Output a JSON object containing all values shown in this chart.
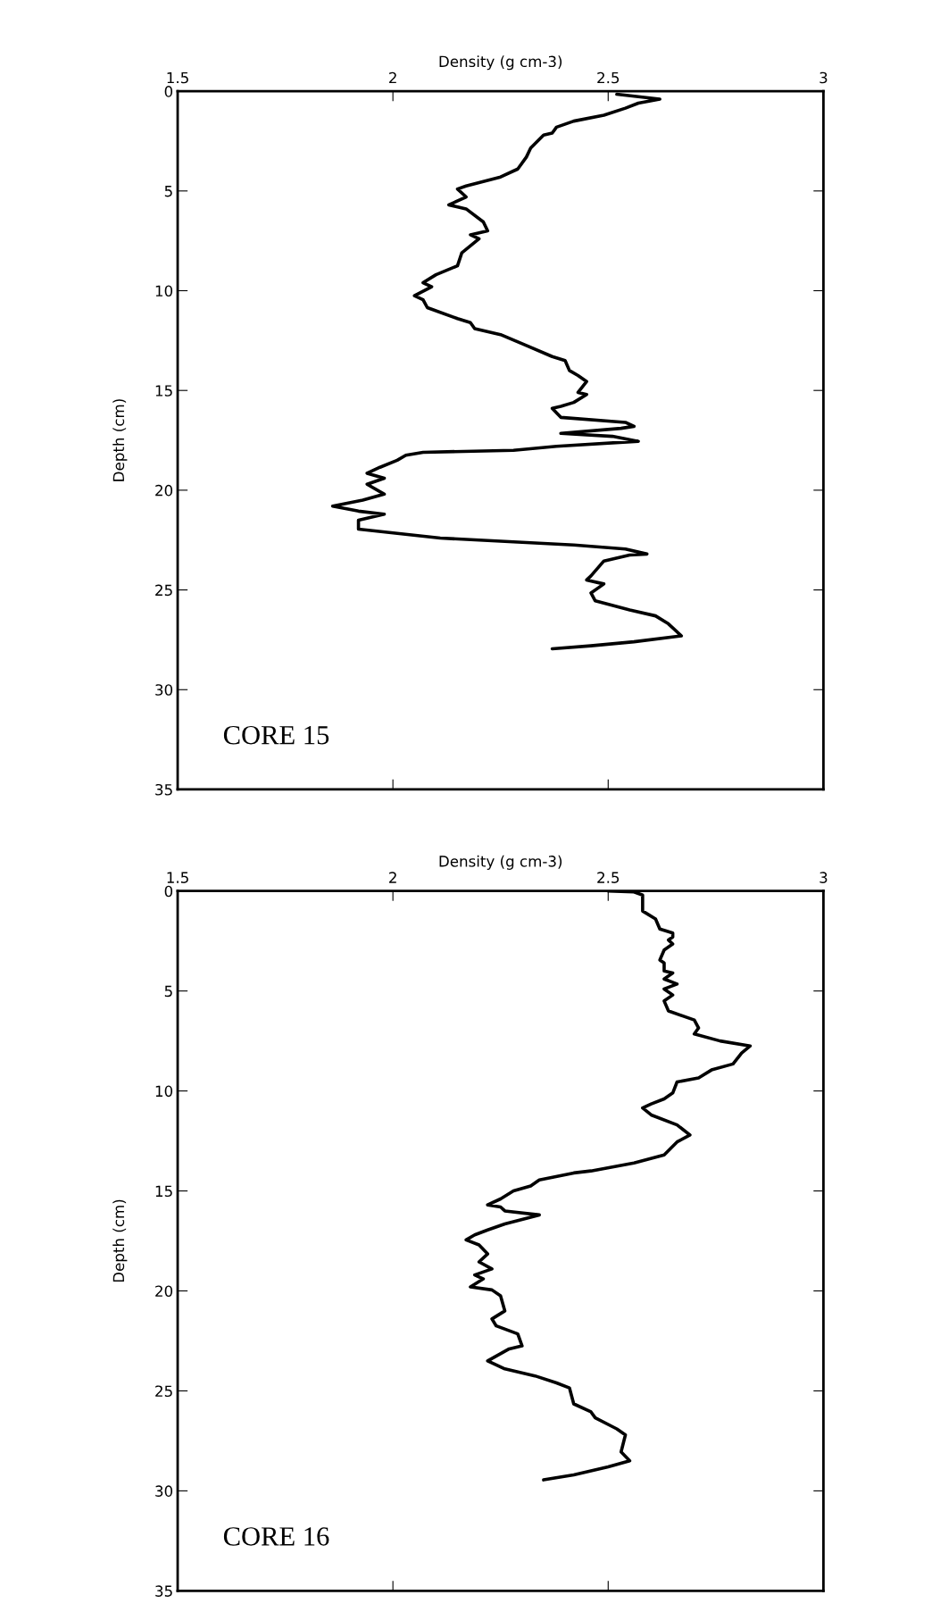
{
  "chart_data": [
    {
      "type": "line",
      "xlabel": "Density (g cm-3)",
      "ylabel": "Depth (cm)",
      "annotations": [
        "CORE 15"
      ],
      "xlim": [
        1.5,
        3
      ],
      "xticks": [
        1.5,
        2,
        2.5,
        3
      ],
      "ylim": [
        35,
        0
      ],
      "yticks": [
        0,
        5,
        10,
        15,
        20,
        25,
        30,
        35
      ],
      "grid": false,
      "line_style": "solid",
      "marker": "none",
      "series": [
        {
          "color": "#000000",
          "x": [
            2.52,
            2.62,
            2.57,
            2.54,
            2.49,
            2.42,
            2.38,
            2.37,
            2.35,
            2.32,
            2.31,
            2.29,
            2.25,
            2.17,
            2.15,
            2.17,
            2.13,
            2.17,
            2.21,
            2.22,
            2.18,
            2.2,
            2.16,
            2.15,
            2.1,
            2.07,
            2.09,
            2.05,
            2.07,
            2.08,
            2.15,
            2.18,
            2.19,
            2.25,
            2.31,
            2.37,
            2.4,
            2.41,
            2.43,
            2.45,
            2.43,
            2.45,
            2.42,
            2.39,
            2.37,
            2.39,
            2.54,
            2.56,
            2.53,
            2.39,
            2.51,
            2.57,
            2.38,
            2.28,
            2.07,
            2.03,
            2.01,
            1.97,
            1.94,
            1.98,
            1.94,
            1.98,
            1.93,
            1.86,
            1.92,
            1.98,
            1.92,
            1.92,
            2.11,
            2.29,
            2.42,
            2.54,
            2.59,
            2.55,
            2.49,
            2.46,
            2.45,
            2.49,
            2.46,
            2.47,
            2.55,
            2.61,
            2.64,
            2.67,
            2.56,
            2.46,
            2.37
          ],
          "values": [
            0.15,
            0.4,
            0.6,
            0.85,
            1.2,
            1.5,
            1.8,
            2.1,
            2.2,
            2.85,
            3.3,
            3.9,
            4.3,
            4.75,
            4.9,
            5.3,
            5.7,
            5.9,
            6.55,
            7.0,
            7.2,
            7.4,
            8.1,
            8.75,
            9.2,
            9.6,
            9.8,
            10.25,
            10.45,
            10.85,
            11.4,
            11.6,
            11.9,
            12.2,
            12.75,
            13.3,
            13.5,
            14.0,
            14.25,
            14.55,
            15.1,
            15.2,
            15.6,
            15.8,
            15.9,
            16.35,
            16.6,
            16.8,
            16.9,
            17.15,
            17.3,
            17.55,
            17.8,
            18.0,
            18.1,
            18.25,
            18.5,
            18.85,
            19.15,
            19.4,
            19.7,
            20.2,
            20.5,
            20.8,
            21.05,
            21.2,
            21.5,
            21.95,
            22.4,
            22.6,
            22.75,
            22.95,
            23.2,
            23.25,
            23.55,
            24.3,
            24.5,
            24.7,
            25.15,
            25.55,
            26.0,
            26.3,
            26.7,
            27.3,
            27.6,
            27.8,
            27.95
          ]
        }
      ]
    },
    {
      "type": "line",
      "xlabel": "Density (g cm-3)",
      "ylabel": "Depth (cm)",
      "annotations": [
        "CORE 16"
      ],
      "xlim": [
        1.5,
        3
      ],
      "xticks": [
        1.5,
        2,
        2.5,
        3
      ],
      "ylim": [
        35,
        0
      ],
      "yticks": [
        0,
        5,
        10,
        15,
        20,
        25,
        30,
        35
      ],
      "grid": false,
      "line_style": "solid",
      "marker": "none",
      "series": [
        {
          "color": "#000000",
          "x": [
            2.5,
            2.56,
            2.58,
            2.58,
            2.61,
            2.62,
            2.65,
            2.65,
            2.64,
            2.65,
            2.63,
            2.62,
            2.63,
            2.63,
            2.65,
            2.63,
            2.66,
            2.63,
            2.65,
            2.63,
            2.64,
            2.7,
            2.71,
            2.7,
            2.76,
            2.83,
            2.81,
            2.79,
            2.74,
            2.71,
            2.66,
            2.65,
            2.63,
            2.6,
            2.58,
            2.6,
            2.66,
            2.69,
            2.66,
            2.63,
            2.56,
            2.46,
            2.42,
            2.34,
            2.32,
            2.28,
            2.25,
            2.22,
            2.25,
            2.26,
            2.34,
            2.26,
            2.22,
            2.19,
            2.17,
            2.2,
            2.22,
            2.2,
            2.23,
            2.19,
            2.21,
            2.18,
            2.23,
            2.25,
            2.26,
            2.23,
            2.24,
            2.29,
            2.3,
            2.27,
            2.22,
            2.26,
            2.33,
            2.38,
            2.41,
            2.42,
            2.46,
            2.47,
            2.52,
            2.54,
            2.53,
            2.55,
            2.5,
            2.42,
            2.35
          ],
          "values": [
            0,
            0.05,
            0.2,
            1.0,
            1.4,
            1.9,
            2.1,
            2.3,
            2.45,
            2.65,
            2.95,
            3.45,
            3.6,
            4.0,
            4.1,
            4.4,
            4.65,
            4.9,
            5.2,
            5.5,
            6.0,
            6.45,
            6.85,
            7.15,
            7.5,
            7.75,
            8.1,
            8.65,
            8.95,
            9.35,
            9.55,
            10.1,
            10.4,
            10.65,
            10.85,
            11.2,
            11.7,
            12.2,
            12.55,
            13.2,
            13.6,
            14.0,
            14.1,
            14.45,
            14.75,
            15.0,
            15.4,
            15.7,
            15.8,
            16.0,
            16.2,
            16.65,
            16.95,
            17.2,
            17.45,
            17.7,
            18.15,
            18.55,
            18.9,
            19.2,
            19.4,
            19.8,
            19.95,
            20.25,
            21.0,
            21.4,
            21.75,
            22.15,
            22.75,
            22.9,
            23.5,
            23.9,
            24.25,
            24.6,
            24.85,
            25.65,
            26.05,
            26.35,
            26.9,
            27.2,
            28.05,
            28.5,
            28.8,
            29.2,
            29.45
          ]
        }
      ]
    }
  ]
}
